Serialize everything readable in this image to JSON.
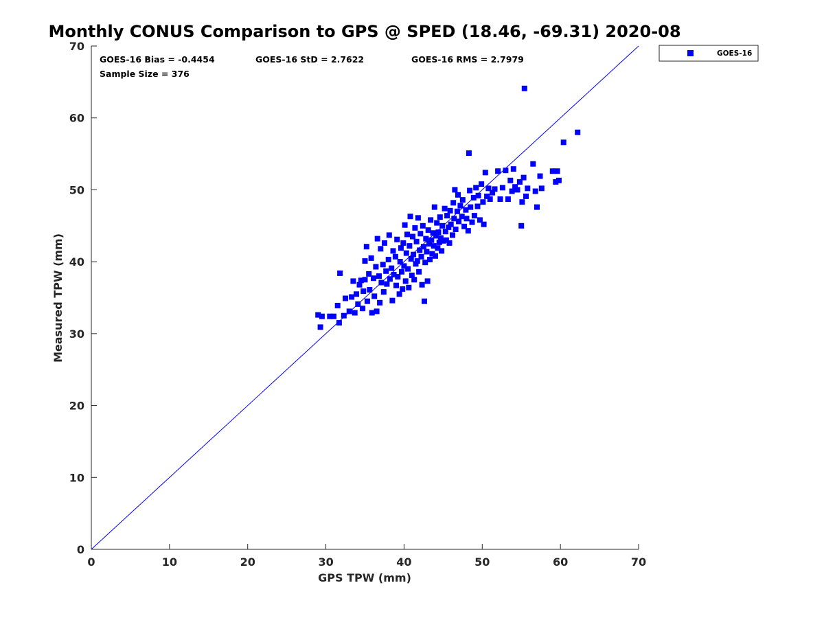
{
  "chart_data": {
    "type": "scatter",
    "title": "Monthly CONUS Comparison to GPS @ SPED (18.46, -69.31) 2020-08",
    "xlabel": "GPS TPW (mm)",
    "ylabel": "Measured TPW (mm)",
    "xlim": [
      0,
      70
    ],
    "ylim": [
      0,
      70
    ],
    "xticks": [
      "0",
      "10",
      "20",
      "30",
      "40",
      "50",
      "60",
      "70"
    ],
    "yticks": [
      "0",
      "10",
      "20",
      "30",
      "40",
      "50",
      "60",
      "70"
    ],
    "grid": false,
    "legend_position": "outside-top-right",
    "reference_line": "1:1",
    "stats": {
      "bias": "GOES-16 Bias = -0.4454",
      "std": "GOES-16 StD = 2.7622",
      "rms": "GOES-16 RMS = 2.7979",
      "sample": "Sample Size = 376"
    },
    "colors": {
      "series": "#0000ff",
      "line": "#0000ff",
      "axis": "#262626"
    },
    "series": [
      {
        "name": "GOES-16",
        "marker": "square",
        "points": [
          [
            29.0,
            32.6
          ],
          [
            29.3,
            30.9
          ],
          [
            29.5,
            32.4
          ],
          [
            30.5,
            32.4
          ],
          [
            31.0,
            32.4
          ],
          [
            31.5,
            33.9
          ],
          [
            31.7,
            31.5
          ],
          [
            31.8,
            38.4
          ],
          [
            32.3,
            32.5
          ],
          [
            32.5,
            34.9
          ],
          [
            33.0,
            33.1
          ],
          [
            33.3,
            35.1
          ],
          [
            33.5,
            37.3
          ],
          [
            33.7,
            32.9
          ],
          [
            33.9,
            35.5
          ],
          [
            34.1,
            34.1
          ],
          [
            34.3,
            36.8
          ],
          [
            34.5,
            37.4
          ],
          [
            34.7,
            33.5
          ],
          [
            34.8,
            35.9
          ],
          [
            35.0,
            37.5
          ],
          [
            35.0,
            40.1
          ],
          [
            35.2,
            42.1
          ],
          [
            35.3,
            34.5
          ],
          [
            35.5,
            38.3
          ],
          [
            35.6,
            36.1
          ],
          [
            35.8,
            40.5
          ],
          [
            35.9,
            32.9
          ],
          [
            36.1,
            37.7
          ],
          [
            36.2,
            35.2
          ],
          [
            36.4,
            39.3
          ],
          [
            36.5,
            33.1
          ],
          [
            36.6,
            43.2
          ],
          [
            36.8,
            38.0
          ],
          [
            36.9,
            34.3
          ],
          [
            37.0,
            41.8
          ],
          [
            37.1,
            37.1
          ],
          [
            37.3,
            39.6
          ],
          [
            37.4,
            35.8
          ],
          [
            37.5,
            42.6
          ],
          [
            37.7,
            38.7
          ],
          [
            37.8,
            36.9
          ],
          [
            38.0,
            40.3
          ],
          [
            38.1,
            43.7
          ],
          [
            38.2,
            37.6
          ],
          [
            38.4,
            39.1
          ],
          [
            38.5,
            34.6
          ],
          [
            38.6,
            41.5
          ],
          [
            38.7,
            38.2
          ],
          [
            38.9,
            40.7
          ],
          [
            39.0,
            36.7
          ],
          [
            39.1,
            43.1
          ],
          [
            39.2,
            37.9
          ],
          [
            39.4,
            35.5
          ],
          [
            39.5,
            40.0
          ],
          [
            39.6,
            41.9
          ],
          [
            39.7,
            38.6
          ],
          [
            39.8,
            36.2
          ],
          [
            39.9,
            42.6
          ],
          [
            40.0,
            39.4
          ],
          [
            40.1,
            45.1
          ],
          [
            40.2,
            37.3
          ],
          [
            40.3,
            41.2
          ],
          [
            40.4,
            43.8
          ],
          [
            40.5,
            39.0
          ],
          [
            40.6,
            36.4
          ],
          [
            40.7,
            42.2
          ],
          [
            40.8,
            46.3
          ],
          [
            40.9,
            40.4
          ],
          [
            41.0,
            38.1
          ],
          [
            41.1,
            43.5
          ],
          [
            41.2,
            41.0
          ],
          [
            41.3,
            37.5
          ],
          [
            41.4,
            44.7
          ],
          [
            41.5,
            39.7
          ],
          [
            41.6,
            42.8
          ],
          [
            41.7,
            40.1
          ],
          [
            41.8,
            46.1
          ],
          [
            41.9,
            38.6
          ],
          [
            42.0,
            41.6
          ],
          [
            42.1,
            43.9
          ],
          [
            42.2,
            40.7
          ],
          [
            42.3,
            36.8
          ],
          [
            42.4,
            45.0
          ],
          [
            42.5,
            42.1
          ],
          [
            42.6,
            34.5
          ],
          [
            42.7,
            39.9
          ],
          [
            42.8,
            43.2
          ],
          [
            42.9,
            41.4
          ],
          [
            43.0,
            37.3
          ],
          [
            43.1,
            44.4
          ],
          [
            43.2,
            42.5
          ],
          [
            43.3,
            40.3
          ],
          [
            43.4,
            45.8
          ],
          [
            43.5,
            43.0
          ],
          [
            43.6,
            41.1
          ],
          [
            43.7,
            44.0
          ],
          [
            43.8,
            42.2
          ],
          [
            43.9,
            47.6
          ],
          [
            44.0,
            40.8
          ],
          [
            44.1,
            43.6
          ],
          [
            44.2,
            45.4
          ],
          [
            44.3,
            41.9
          ],
          [
            44.4,
            44.1
          ],
          [
            44.5,
            42.7
          ],
          [
            44.6,
            46.2
          ],
          [
            44.7,
            43.3
          ],
          [
            44.8,
            41.5
          ],
          [
            44.9,
            45.0
          ],
          [
            45.0,
            42.9
          ],
          [
            45.2,
            47.4
          ],
          [
            45.3,
            44.2
          ],
          [
            45.4,
            43.0
          ],
          [
            45.5,
            46.4
          ],
          [
            45.7,
            44.8
          ],
          [
            45.8,
            42.6
          ],
          [
            45.9,
            47.1
          ],
          [
            46.0,
            45.2
          ],
          [
            46.2,
            43.7
          ],
          [
            46.3,
            48.2
          ],
          [
            46.4,
            46.0
          ],
          [
            46.5,
            50.0
          ],
          [
            46.6,
            44.5
          ],
          [
            46.8,
            47.0
          ],
          [
            46.9,
            49.3
          ],
          [
            47.0,
            45.6
          ],
          [
            47.2,
            47.8
          ],
          [
            47.4,
            46.3
          ],
          [
            47.5,
            48.6
          ],
          [
            47.7,
            44.9
          ],
          [
            47.9,
            47.2
          ],
          [
            48.0,
            46.0
          ],
          [
            48.2,
            44.3
          ],
          [
            48.3,
            55.1
          ],
          [
            48.4,
            49.9
          ],
          [
            48.5,
            47.6
          ],
          [
            48.7,
            45.5
          ],
          [
            48.9,
            48.9
          ],
          [
            49.0,
            46.4
          ],
          [
            49.2,
            50.3
          ],
          [
            49.4,
            47.7
          ],
          [
            49.5,
            49.2
          ],
          [
            49.7,
            45.8
          ],
          [
            49.9,
            50.8
          ],
          [
            50.1,
            48.3
          ],
          [
            50.2,
            45.2
          ],
          [
            50.4,
            52.4
          ],
          [
            50.6,
            49.1
          ],
          [
            50.8,
            50.2
          ],
          [
            51.0,
            48.7
          ],
          [
            51.3,
            49.6
          ],
          [
            51.6,
            50.1
          ],
          [
            52.0,
            52.6
          ],
          [
            52.3,
            48.7
          ],
          [
            52.6,
            50.3
          ],
          [
            53.0,
            52.7
          ],
          [
            53.3,
            48.7
          ],
          [
            53.6,
            51.3
          ],
          [
            53.8,
            49.8
          ],
          [
            54.0,
            52.9
          ],
          [
            54.2,
            50.4
          ],
          [
            54.5,
            50.0
          ],
          [
            54.8,
            51.1
          ],
          [
            55.0,
            45.0
          ],
          [
            55.1,
            48.3
          ],
          [
            55.3,
            51.7
          ],
          [
            55.4,
            64.1
          ],
          [
            55.6,
            49.1
          ],
          [
            55.8,
            50.2
          ],
          [
            56.5,
            53.6
          ],
          [
            56.8,
            49.8
          ],
          [
            57.0,
            47.6
          ],
          [
            57.4,
            51.9
          ],
          [
            57.6,
            50.2
          ],
          [
            59.0,
            52.6
          ],
          [
            59.4,
            51.1
          ],
          [
            59.6,
            52.6
          ],
          [
            59.8,
            51.3
          ],
          [
            60.4,
            56.6
          ],
          [
            62.2,
            58.0
          ]
        ]
      }
    ]
  }
}
